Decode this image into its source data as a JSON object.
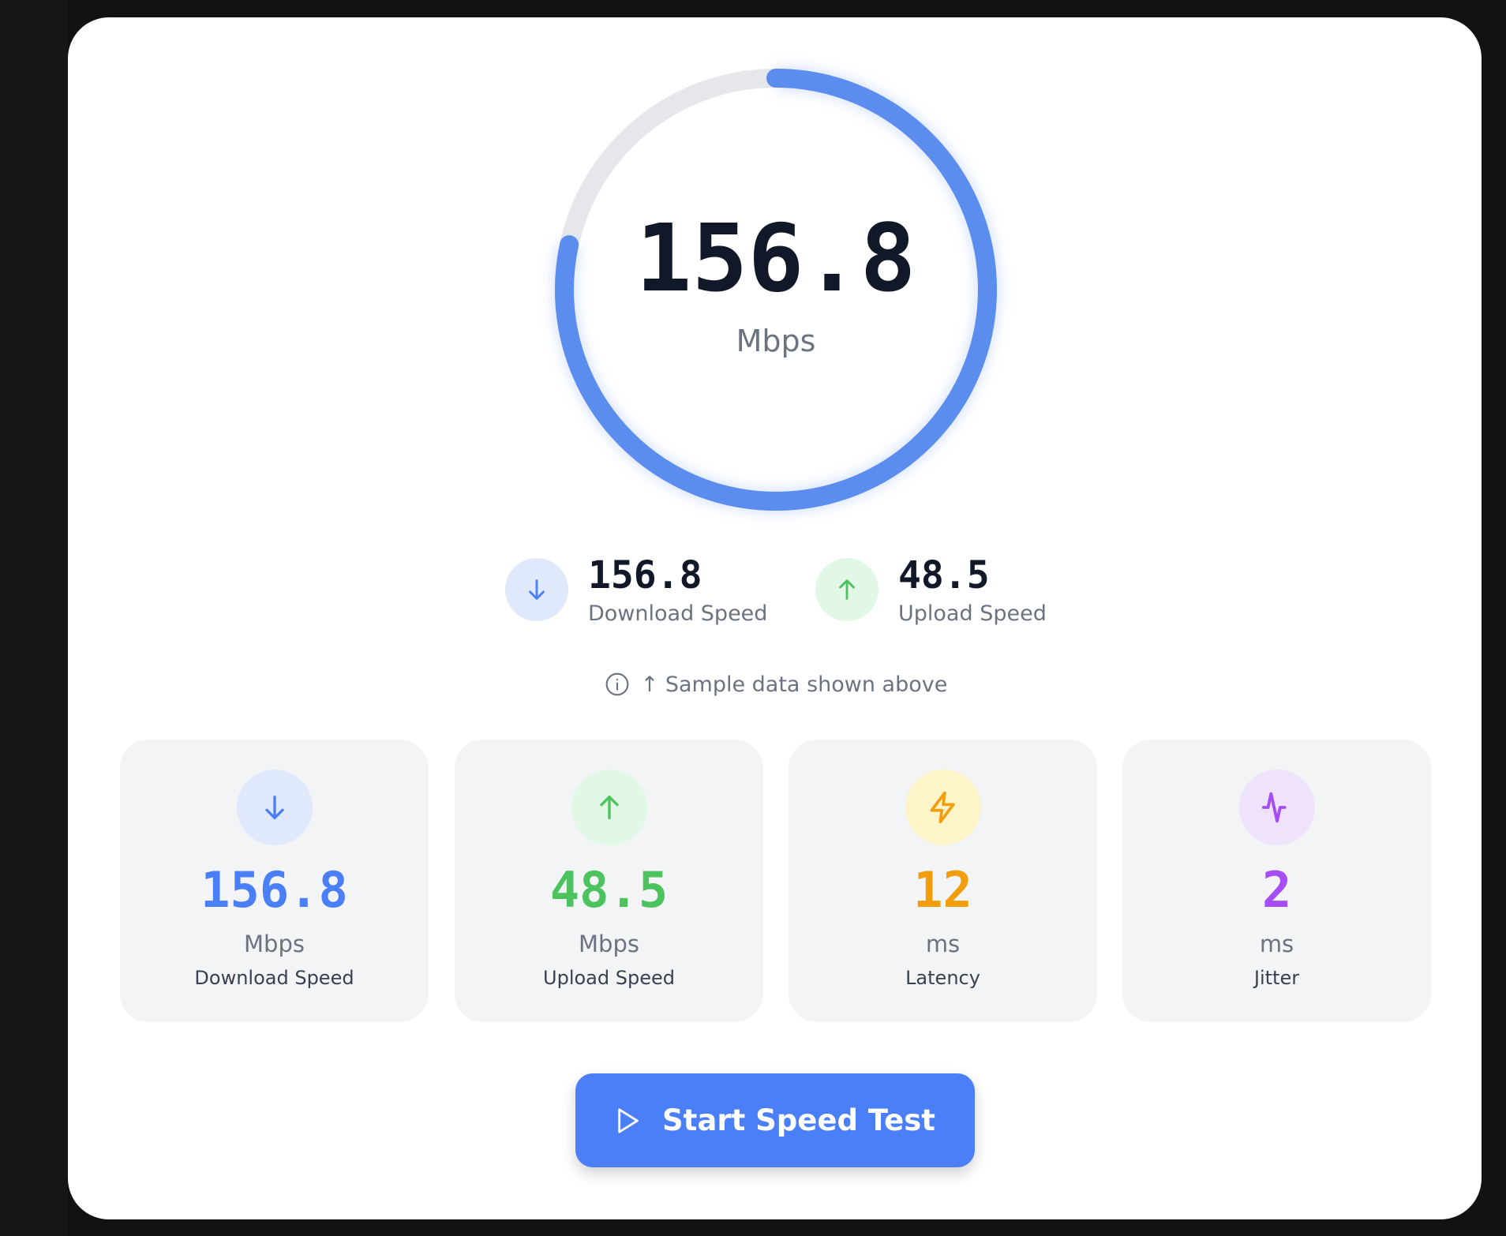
{
  "gauge": {
    "value": "156.8",
    "unit": "Mbps",
    "fill_fraction": 0.784,
    "accent": "#5b8def",
    "track": "#e5e7eb"
  },
  "summary": [
    {
      "value": "156.8",
      "label": "Download Speed",
      "icon": "arrow-down-icon",
      "color": "#4a7ff7",
      "bg": "#dfe9fb"
    },
    {
      "value": "48.5",
      "label": "Upload Speed",
      "icon": "arrow-up-icon",
      "color": "#4cc35f",
      "bg": "#e2f8e6"
    }
  ],
  "info": {
    "text": "↑ Sample data shown above",
    "icon": "info-icon"
  },
  "stats": [
    {
      "value": "156.8",
      "unit": "Mbps",
      "label": "Download Speed",
      "icon": "arrow-down-icon",
      "color": "#4a7ff7",
      "bg": "#dfe9fb"
    },
    {
      "value": "48.5",
      "unit": "Mbps",
      "label": "Upload Speed",
      "icon": "arrow-up-icon",
      "color": "#4cc35f",
      "bg": "#e2f8e6"
    },
    {
      "value": "12",
      "unit": "ms",
      "label": "Latency",
      "icon": "lightning-icon",
      "color": "#f29e0c",
      "bg": "#fdf4c9"
    },
    {
      "value": "2",
      "unit": "ms",
      "label": "Jitter",
      "icon": "activity-icon",
      "color": "#a64df5",
      "bg": "#efe3fb"
    }
  ],
  "button": {
    "label": "Start Speed Test",
    "icon": "play-icon",
    "color": "#4a7ff7"
  }
}
